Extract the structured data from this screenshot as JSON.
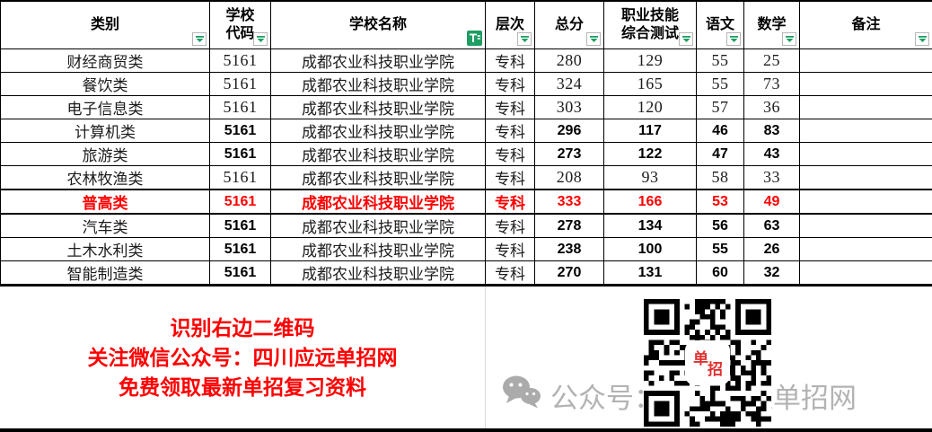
{
  "table": {
    "columns": [
      {
        "key": "category",
        "label": "类别",
        "filter": "dropdown"
      },
      {
        "key": "code",
        "label": "学校\n代码",
        "filter": "dropdown"
      },
      {
        "key": "school",
        "label": "学校名称",
        "filter": "active"
      },
      {
        "key": "level",
        "label": "层次",
        "filter": "dropdown"
      },
      {
        "key": "total",
        "label": "总分",
        "filter": "dropdown"
      },
      {
        "key": "skill",
        "label": "职业技能\n综合测试",
        "filter": "dropdown"
      },
      {
        "key": "chinese",
        "label": "语文",
        "filter": "dropdown"
      },
      {
        "key": "math",
        "label": "数学",
        "filter": "dropdown"
      },
      {
        "key": "remark",
        "label": "备注",
        "filter": "dropdown"
      }
    ],
    "rows": [
      {
        "category": "财经商贸类",
        "code": "5161",
        "school": "成都农业科技职业学院",
        "level": "专科",
        "total": "280",
        "skill": "129",
        "chinese": "55",
        "math": "25",
        "remark": "",
        "style": "plain"
      },
      {
        "category": "餐饮类",
        "code": "5161",
        "school": "成都农业科技职业学院",
        "level": "专科",
        "total": "324",
        "skill": "165",
        "chinese": "55",
        "math": "73",
        "remark": "",
        "style": "plain"
      },
      {
        "category": "电子信息类",
        "code": "5161",
        "school": "成都农业科技职业学院",
        "level": "专科",
        "total": "303",
        "skill": "120",
        "chinese": "57",
        "math": "36",
        "remark": "",
        "style": "plain"
      },
      {
        "category": "计算机类",
        "code": "5161",
        "school": "成都农业科技职业学院",
        "level": "专科",
        "total": "296",
        "skill": "117",
        "chinese": "46",
        "math": "83",
        "remark": "",
        "style": "boldnum"
      },
      {
        "category": "旅游类",
        "code": "5161",
        "school": "成都农业科技职业学院",
        "level": "专科",
        "total": "273",
        "skill": "122",
        "chinese": "47",
        "math": "43",
        "remark": "",
        "style": "boldnum"
      },
      {
        "category": "农林牧渔类",
        "code": "5161",
        "school": "成都农业科技职业学院",
        "level": "专科",
        "total": "208",
        "skill": "93",
        "chinese": "58",
        "math": "33",
        "remark": "",
        "style": "plain"
      },
      {
        "category": "普高类",
        "code": "5161",
        "school": "成都农业科技职业学院",
        "level": "专科",
        "total": "333",
        "skill": "166",
        "chinese": "53",
        "math": "49",
        "remark": "",
        "style": "red"
      },
      {
        "category": "汽车类",
        "code": "5161",
        "school": "成都农业科技职业学院",
        "level": "专科",
        "total": "278",
        "skill": "134",
        "chinese": "56",
        "math": "63",
        "remark": "",
        "style": "boldnum"
      },
      {
        "category": "土木水利类",
        "code": "5161",
        "school": "成都农业科技职业学院",
        "level": "专科",
        "total": "238",
        "skill": "100",
        "chinese": "55",
        "math": "26",
        "remark": "",
        "style": "boldnum"
      },
      {
        "category": "智能制造类",
        "code": "5161",
        "school": "成都农业科技职业学院",
        "level": "专科",
        "total": "270",
        "skill": "131",
        "chinese": "60",
        "math": "32",
        "remark": "",
        "style": "boldnum"
      }
    ]
  },
  "footer": {
    "promo_lines": [
      "识别右边二维码",
      "关注微信公众号：四川应远单招网",
      "免费领取最新单招复习资料"
    ],
    "qr_label_chars": [
      "单",
      "招"
    ],
    "watermark_text": "公众号：四川应远单招网"
  },
  "colors": {
    "highlight_red": "#ff0000",
    "filter_green": "#1e9e62",
    "watermark_gray": "#b3b3b3",
    "border_black": "#000000"
  }
}
